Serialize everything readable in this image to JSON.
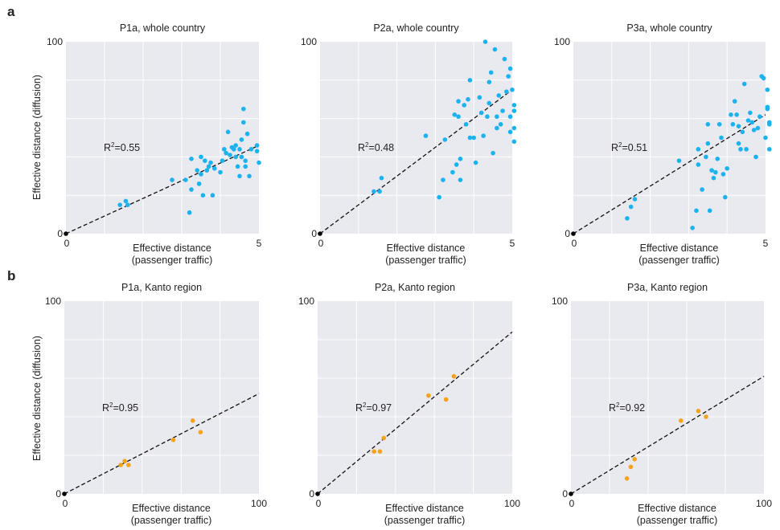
{
  "row_labels": [
    "a",
    "b"
  ],
  "ylabel": "Effective distance (diffusion)",
  "xlabel_line1": "Effective distance",
  "xlabel_line2": "(passenger traffic)",
  "colors": {
    "blue": "#1ab3ee",
    "orange": "#f6a21a",
    "origin": "#000000"
  },
  "chart_data": [
    {
      "type": "scatter",
      "title": "P1a, whole country",
      "color": "blue",
      "xlim": [
        0,
        5
      ],
      "ylim": [
        0,
        100
      ],
      "xticks": [
        "0",
        "5"
      ],
      "yticks": [
        "0",
        "100"
      ],
      "fit_end_y": 46,
      "r2": "0.55",
      "points": [
        [
          1.4,
          15
        ],
        [
          1.55,
          17
        ],
        [
          1.6,
          15
        ],
        [
          2.75,
          28
        ],
        [
          3.1,
          28
        ],
        [
          3.2,
          11
        ],
        [
          3.25,
          23
        ],
        [
          3.25,
          39
        ],
        [
          3.4,
          33
        ],
        [
          3.45,
          26
        ],
        [
          3.5,
          31
        ],
        [
          3.5,
          40
        ],
        [
          3.55,
          20
        ],
        [
          3.6,
          38
        ],
        [
          3.65,
          33
        ],
        [
          3.7,
          35
        ],
        [
          3.75,
          37
        ],
        [
          3.8,
          20
        ],
        [
          3.85,
          34
        ],
        [
          4.0,
          32
        ],
        [
          4.05,
          38
        ],
        [
          4.1,
          44
        ],
        [
          4.15,
          42
        ],
        [
          4.2,
          53
        ],
        [
          4.25,
          41
        ],
        [
          4.3,
          45
        ],
        [
          4.35,
          44
        ],
        [
          4.4,
          46
        ],
        [
          4.4,
          40
        ],
        [
          4.45,
          35
        ],
        [
          4.5,
          30
        ],
        [
          4.5,
          44
        ],
        [
          4.55,
          49
        ],
        [
          4.55,
          40
        ],
        [
          4.6,
          58
        ],
        [
          4.6,
          65
        ],
        [
          4.65,
          38
        ],
        [
          4.65,
          35
        ],
        [
          4.7,
          52
        ],
        [
          4.75,
          30
        ],
        [
          4.8,
          44
        ],
        [
          4.95,
          43
        ],
        [
          4.95,
          46
        ],
        [
          5.0,
          37
        ]
      ]
    },
    {
      "type": "scatter",
      "title": "P2a, whole country",
      "color": "blue",
      "xlim": [
        0,
        5
      ],
      "ylim": [
        0,
        100
      ],
      "xticks": [
        "0",
        "5"
      ],
      "yticks": [
        "0",
        "100"
      ],
      "fit_end_y": 75,
      "r2": "0.48",
      "points": [
        [
          1.4,
          22
        ],
        [
          1.55,
          22
        ],
        [
          1.6,
          29
        ],
        [
          2.75,
          51
        ],
        [
          3.1,
          19
        ],
        [
          3.2,
          28
        ],
        [
          3.25,
          49
        ],
        [
          3.45,
          32
        ],
        [
          3.5,
          62
        ],
        [
          3.55,
          36
        ],
        [
          3.6,
          61
        ],
        [
          3.6,
          69
        ],
        [
          3.65,
          39
        ],
        [
          3.65,
          28
        ],
        [
          3.75,
          67
        ],
        [
          3.8,
          57
        ],
        [
          3.85,
          70
        ],
        [
          3.9,
          50
        ],
        [
          3.9,
          80
        ],
        [
          4.0,
          50
        ],
        [
          4.05,
          37
        ],
        [
          4.15,
          71
        ],
        [
          4.2,
          63
        ],
        [
          4.25,
          51
        ],
        [
          4.3,
          100
        ],
        [
          4.35,
          61
        ],
        [
          4.4,
          68
        ],
        [
          4.4,
          79
        ],
        [
          4.45,
          84
        ],
        [
          4.5,
          42
        ],
        [
          4.55,
          96
        ],
        [
          4.6,
          55
        ],
        [
          4.6,
          61
        ],
        [
          4.65,
          72
        ],
        [
          4.7,
          57
        ],
        [
          4.75,
          64
        ],
        [
          4.8,
          91
        ],
        [
          4.85,
          74
        ],
        [
          4.9,
          82
        ],
        [
          4.95,
          53
        ],
        [
          4.95,
          61
        ],
        [
          4.95,
          86
        ],
        [
          5.0,
          75
        ],
        [
          5.05,
          64
        ],
        [
          5.05,
          67
        ],
        [
          5.05,
          55
        ],
        [
          5.05,
          48
        ]
      ]
    },
    {
      "type": "scatter",
      "title": "P3a, whole country",
      "color": "blue",
      "xlim": [
        0,
        5
      ],
      "ylim": [
        0,
        100
      ],
      "xticks": [
        "0",
        "5"
      ],
      "yticks": [
        "0",
        "100"
      ],
      "fit_end_y": 62,
      "r2": "0.51",
      "points": [
        [
          1.4,
          8
        ],
        [
          1.5,
          14
        ],
        [
          1.6,
          18
        ],
        [
          2.75,
          38
        ],
        [
          3.1,
          3
        ],
        [
          3.2,
          12
        ],
        [
          3.25,
          36
        ],
        [
          3.25,
          44
        ],
        [
          3.35,
          23
        ],
        [
          3.45,
          40
        ],
        [
          3.5,
          57
        ],
        [
          3.5,
          47
        ],
        [
          3.55,
          12
        ],
        [
          3.6,
          33
        ],
        [
          3.65,
          29
        ],
        [
          3.7,
          32
        ],
        [
          3.75,
          39
        ],
        [
          3.8,
          57
        ],
        [
          3.85,
          50
        ],
        [
          3.9,
          31
        ],
        [
          3.95,
          19
        ],
        [
          4.0,
          34
        ],
        [
          4.1,
          62
        ],
        [
          4.15,
          57
        ],
        [
          4.2,
          69
        ],
        [
          4.25,
          62
        ],
        [
          4.3,
          56
        ],
        [
          4.3,
          47
        ],
        [
          4.35,
          44
        ],
        [
          4.4,
          53
        ],
        [
          4.45,
          78
        ],
        [
          4.5,
          44
        ],
        [
          4.55,
          59
        ],
        [
          4.6,
          63
        ],
        [
          4.65,
          58
        ],
        [
          4.7,
          54
        ],
        [
          4.75,
          40
        ],
        [
          4.8,
          55
        ],
        [
          4.85,
          61
        ],
        [
          4.9,
          82
        ],
        [
          4.95,
          81
        ],
        [
          5.0,
          50
        ],
        [
          5.05,
          75
        ],
        [
          5.05,
          65
        ],
        [
          5.05,
          66
        ],
        [
          5.1,
          58
        ],
        [
          5.1,
          57
        ],
        [
          5.1,
          44
        ]
      ]
    },
    {
      "type": "scatter",
      "title": "P1a, Kanto region",
      "color": "orange",
      "xlim": [
        0,
        100
      ],
      "ylim": [
        0,
        100
      ],
      "xticks": [
        "0",
        "100"
      ],
      "yticks": [
        "0",
        "100"
      ],
      "fit_end_y": 52,
      "r2": "0.95",
      "points": [
        [
          29,
          15
        ],
        [
          31,
          17
        ],
        [
          33,
          15
        ],
        [
          56,
          28
        ],
        [
          66,
          38
        ],
        [
          70,
          32
        ]
      ]
    },
    {
      "type": "scatter",
      "title": "P2a, Kanto region",
      "color": "orange",
      "xlim": [
        0,
        100
      ],
      "ylim": [
        0,
        100
      ],
      "xticks": [
        "0",
        "100"
      ],
      "yticks": [
        "0",
        "100"
      ],
      "fit_end_y": 84,
      "r2": "0.97",
      "points": [
        [
          29,
          22
        ],
        [
          32,
          22
        ],
        [
          34,
          29
        ],
        [
          57,
          51
        ],
        [
          66,
          49
        ],
        [
          70,
          61
        ]
      ]
    },
    {
      "type": "scatter",
      "title": "P3a, Kanto region",
      "color": "orange",
      "xlim": [
        0,
        100
      ],
      "ylim": [
        0,
        100
      ],
      "xticks": [
        "0",
        "100"
      ],
      "yticks": [
        "0",
        "100"
      ],
      "fit_end_y": 61,
      "r2": "0.92",
      "points": [
        [
          29,
          8
        ],
        [
          31,
          14
        ],
        [
          33,
          18
        ],
        [
          57,
          38
        ],
        [
          66,
          43
        ],
        [
          70,
          40
        ]
      ]
    }
  ]
}
